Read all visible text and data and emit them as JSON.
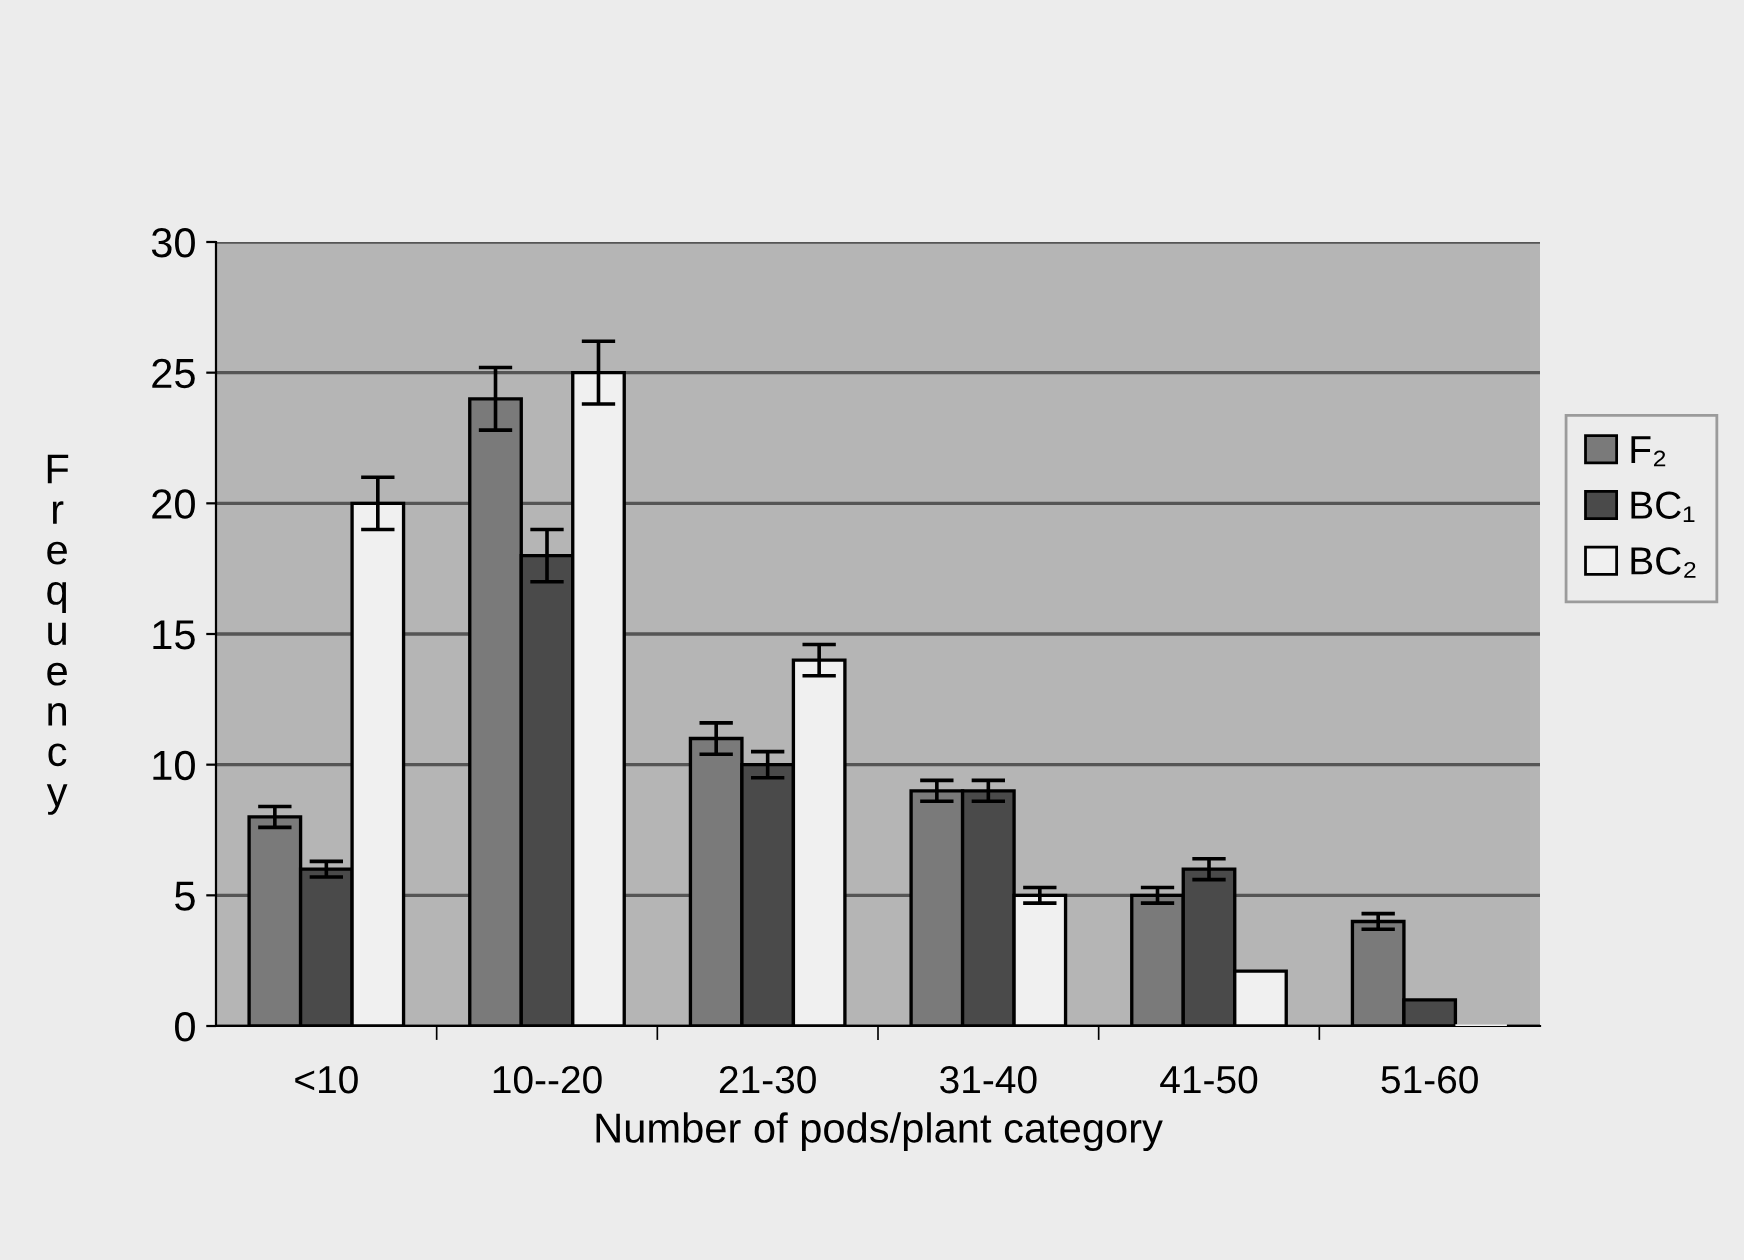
{
  "chart_data": {
    "type": "bar",
    "xlabel": "Number of pods/plant category",
    "ylabel": "Frequency",
    "categories": [
      "<10",
      "10--20",
      "21-30",
      "31-40",
      "41-50",
      "51-60"
    ],
    "series": [
      {
        "name": "F₂",
        "color": "#7a7a7a",
        "values": [
          8,
          24,
          11,
          9,
          5,
          4
        ],
        "errors": [
          0.4,
          1.2,
          0.6,
          0.4,
          0.3,
          0.3
        ]
      },
      {
        "name": "BC₁",
        "color": "#4a4a4a",
        "values": [
          6,
          18,
          10,
          9,
          6,
          1
        ],
        "errors": [
          0.3,
          1,
          0.5,
          0.4,
          0.4,
          null
        ]
      },
      {
        "name": "BC₂",
        "color": "#f0f0f0",
        "values": [
          20,
          25,
          14,
          5,
          2.1,
          0
        ],
        "errors": [
          1,
          1.2,
          0.6,
          0.3,
          null,
          null
        ]
      }
    ],
    "ylim": [
      0,
      30
    ],
    "yticks": [
      0,
      5,
      10,
      15,
      20,
      25,
      30
    ],
    "grid": "y",
    "legend": "right"
  }
}
